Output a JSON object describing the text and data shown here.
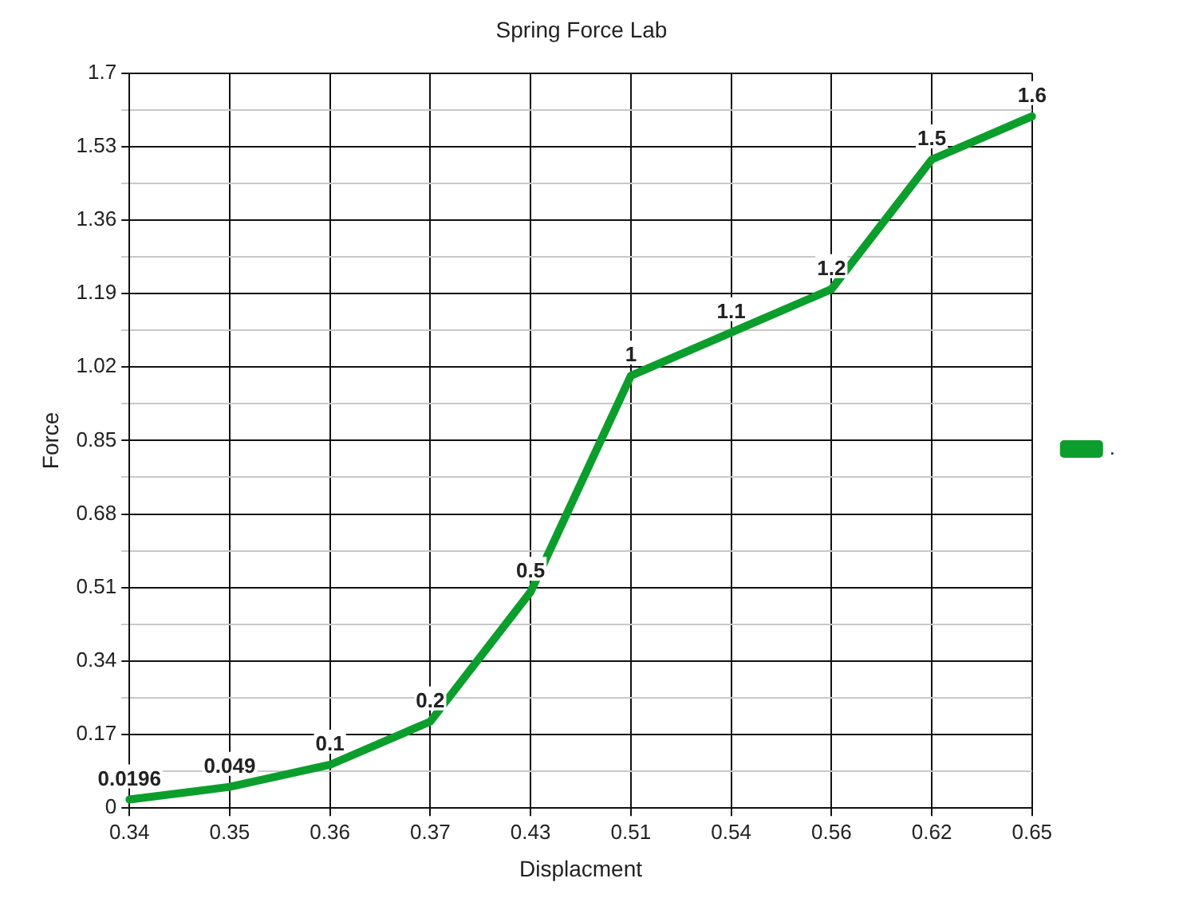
{
  "chart_data": {
    "type": "line",
    "title": "Spring Force Lab",
    "xlabel": "Displacment",
    "ylabel": "Force",
    "categories": [
      "0.34",
      "0.35",
      "0.36",
      "0.37",
      "0.43",
      "0.51",
      "0.54",
      "0.56",
      "0.62",
      "0.65"
    ],
    "series": [
      {
        "name": ".",
        "color": "#0c9e2c",
        "values": [
          0.0196,
          0.049,
          0.1,
          0.2,
          0.5,
          1,
          1.1,
          1.2,
          1.5,
          1.6
        ]
      }
    ],
    "ylim": [
      0,
      1.7
    ],
    "yticks": [
      0,
      {
        "value": 0.085,
        "label": null
      },
      0.17,
      {
        "value": 0.255,
        "label": null
      },
      0.34,
      {
        "value": 0.425,
        "label": null
      },
      0.51,
      {
        "value": 0.595,
        "label": null
      },
      0.68,
      {
        "value": 0.765,
        "label": null
      },
      0.85,
      {
        "value": 0.935,
        "label": null
      },
      1.02,
      {
        "value": 1.105,
        "label": null
      },
      1.19,
      {
        "value": 1.275,
        "label": null
      },
      1.36,
      {
        "value": 1.445,
        "label": null
      },
      1.53,
      {
        "value": 1.615,
        "label": null
      },
      1.7
    ],
    "grid": true,
    "legend": "right",
    "marker": "none",
    "line_style": "solid",
    "data_labels": true
  }
}
